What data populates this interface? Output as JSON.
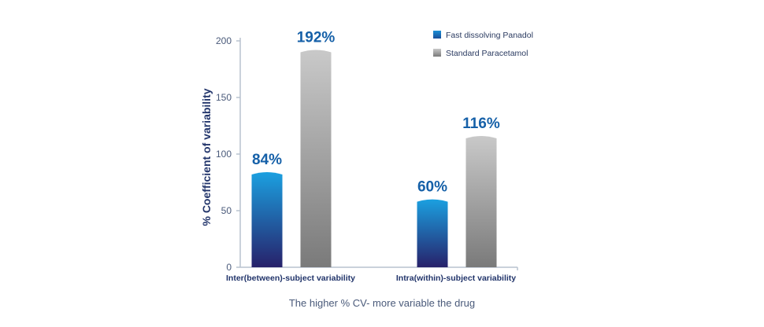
{
  "chart_data": {
    "type": "bar",
    "title": "",
    "ylabel": "% Coefficient of variability",
    "xlabel": "",
    "ylim": [
      0,
      200
    ],
    "yticks": [
      0,
      50,
      100,
      150,
      200
    ],
    "grid": false,
    "legend_placement": "top-right",
    "categories": [
      "Inter(between)-subject variability",
      "Intra(within)-subject variability"
    ],
    "series": [
      {
        "name": "Fast dissolving Panadol",
        "values": [
          84,
          60
        ],
        "labels": [
          "84%",
          "60%"
        ],
        "color": "#1a8fd6"
      },
      {
        "name": "Standard Paracetamol",
        "values": [
          192,
          116
        ],
        "labels": [
          "192%",
          "116%"
        ],
        "color": "#a0a0a0"
      }
    ],
    "footnote": "The higher % CV- more variable the drug",
    "colors": {
      "axis": "#b9c2cf",
      "text": "#22356b",
      "label": "#1560a8"
    }
  }
}
